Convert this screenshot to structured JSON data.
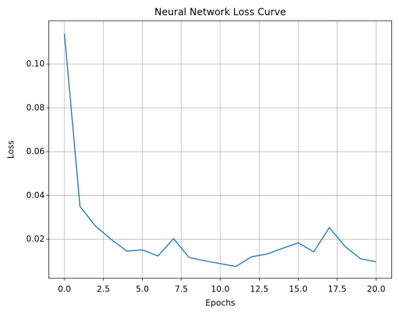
{
  "chart_data": {
    "type": "line",
    "title": "Neural Network Loss Curve",
    "x_label": "Epochs",
    "y_label": "Loss",
    "x": [
      0,
      1,
      2,
      3,
      4,
      5,
      6,
      7,
      8,
      9,
      10,
      11,
      12,
      13,
      14,
      15,
      16,
      17,
      18,
      19,
      20
    ],
    "series": [
      {
        "name": "Loss",
        "color": "#1f77b4",
        "values": [
          0.114,
          0.035,
          0.026,
          0.02,
          0.0146,
          0.0152,
          0.0124,
          0.0203,
          0.0117,
          0.0102,
          0.0089,
          0.0076,
          0.012,
          0.0133,
          0.0159,
          0.0184,
          0.0143,
          0.0254,
          0.0168,
          0.0111,
          0.0098
        ]
      }
    ],
    "xlim": [
      -1,
      21
    ],
    "xticks": [
      {
        "value": 0,
        "label": "0.0"
      },
      {
        "value": 2.5,
        "label": "2.5"
      },
      {
        "value": 5,
        "label": "5.0"
      },
      {
        "value": 7.5,
        "label": "7.5"
      },
      {
        "value": 10,
        "label": "10.0"
      },
      {
        "value": 12.5,
        "label": "12.5"
      },
      {
        "value": 15,
        "label": "15.0"
      },
      {
        "value": 17.5,
        "label": "17.5"
      },
      {
        "value": 20,
        "label": "20.0"
      }
    ],
    "ylim": [
      0.0022,
      0.1198
    ],
    "yticks": [
      0.02,
      0.04,
      0.06,
      0.08,
      {
        "value": 0.1,
        "label": "0.10"
      }
    ],
    "grid": true
  }
}
